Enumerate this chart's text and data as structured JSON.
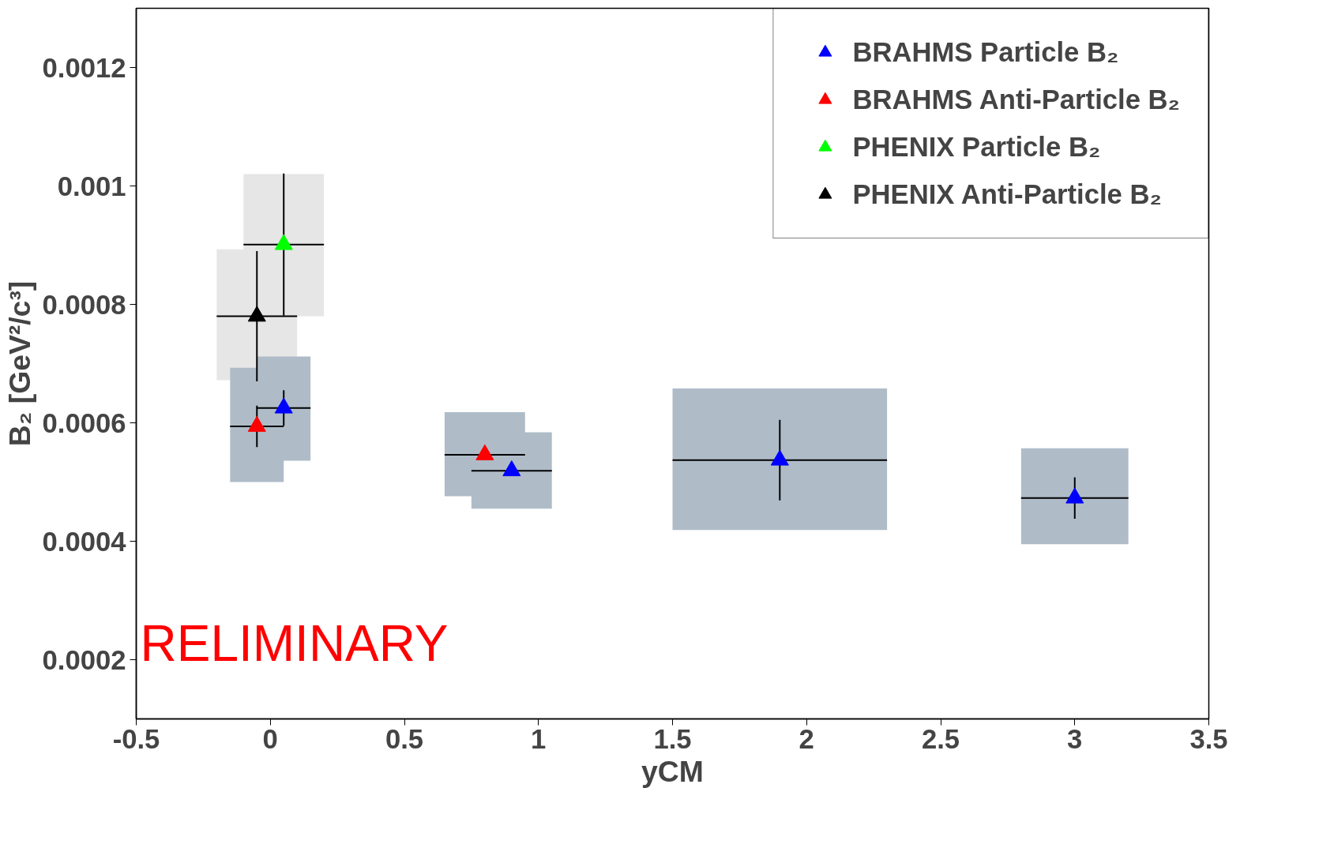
{
  "chart_data": {
    "type": "scatter",
    "xlabel": "yCM",
    "ylabel": "B₂ [GeV²/c³]",
    "xlim": [
      -0.5,
      3.5
    ],
    "ylim": [
      0.0001,
      0.0013
    ],
    "xticks": [
      -0.5,
      0,
      0.5,
      1,
      1.5,
      2,
      2.5,
      3,
      3.5
    ],
    "yticks": [
      0.0002,
      0.0004,
      0.0006,
      0.0008,
      0.001,
      0.0012
    ],
    "legend": "top right",
    "marker": "triangle",
    "annotations": [
      "RELIMINARY"
    ],
    "series": [
      {
        "type": "bar",
        "color": "#e6e6e6",
        "x": [
          -0.05,
          0.05
        ],
        "base": [
          0.000672,
          0.00078
        ],
        "values": [
          0.000221,
          0.00024
        ]
      },
      {
        "type": "bar",
        "color": "#afbcc8",
        "x": [
          -0.05,
          0.05,
          0.8,
          0.9,
          1.9,
          3.0
        ],
        "base": [
          0.0005,
          0.000536,
          0.000476,
          0.000455,
          0.000419,
          0.000395
        ],
        "values": [
          0.000193,
          0.000176,
          0.000142,
          0.000129,
          0.000239,
          0.000162
        ]
      },
      {
        "name": "BRAHMS Particle B₂",
        "color": "#0000ff",
        "x": [
          0.05,
          0.9,
          1.9,
          3.0
        ],
        "values": [
          0.000625,
          0.000519,
          0.000537,
          0.000473
        ],
        "errors": [
          3e-05,
          null,
          6.8e-05,
          3.5e-05
        ],
        "xerrors": [
          0.1,
          0.15,
          0.4,
          0.2
        ]
      },
      {
        "name": "BRAHMS Anti-Particle B₂",
        "color": "#ff0000",
        "x": [
          -0.05,
          0.8
        ],
        "values": [
          0.000594,
          0.000546
        ],
        "errors": [
          3.5e-05,
          null
        ],
        "xerrors": [
          0.1,
          0.15
        ]
      },
      {
        "name": "PHENIX Particle B₂",
        "color": "#00ff00",
        "x": [
          0.05
        ],
        "values": [
          0.000901
        ],
        "errors": [
          0.00012
        ],
        "xerrors": [
          0.15
        ]
      },
      {
        "name": "PHENIX Anti-Particle B₂",
        "color": "#000000",
        "x": [
          -0.05
        ],
        "values": [
          0.00078
        ],
        "errors": [
          0.00011
        ],
        "xerrors": [
          0.15
        ]
      }
    ]
  }
}
